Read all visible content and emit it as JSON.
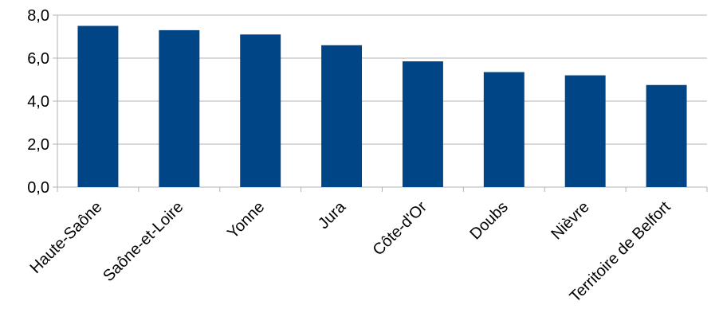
{
  "chart_data": {
    "type": "bar",
    "categories": [
      "Haute-Saône",
      "Saône-et-Loire",
      "Yonne",
      "Jura",
      "Côte-d'Or",
      "Doubs",
      "Nièvre",
      "Territoire de Belfort"
    ],
    "values": [
      7.5,
      7.3,
      7.1,
      6.6,
      5.85,
      5.35,
      5.2,
      4.75
    ],
    "ylim": [
      0,
      8
    ],
    "yticks": [
      0,
      2,
      4,
      6,
      8
    ],
    "ytick_labels": [
      "0,0",
      "2,0",
      "4,0",
      "6,0",
      "8,0"
    ],
    "grid": true,
    "bar_color": "#004586",
    "title": "",
    "xlabel": "",
    "ylabel": ""
  }
}
